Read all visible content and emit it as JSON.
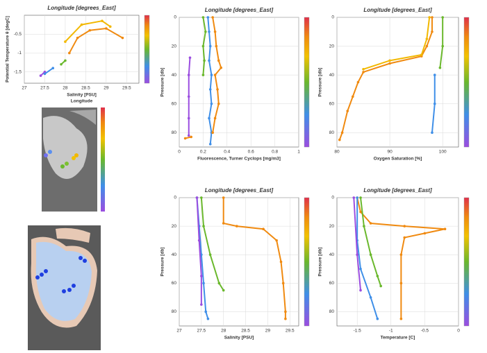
{
  "chart_data": [
    {
      "type": "line",
      "title": "Longitude [degrees_East]",
      "subtitle": "Longitude",
      "xlabel": "Salinity [PSU]",
      "ylabel": "Potential Temperature θ [degC]",
      "xlim": [
        27,
        29.8
      ],
      "xticks": [
        27,
        27.5,
        28,
        28.5,
        29,
        29.5
      ],
      "ylim": [
        -1.8,
        0
      ],
      "yticks": [
        -1.5,
        -1,
        -0.5
      ],
      "y_inverted": false,
      "grid": true,
      "series": [
        {
          "color": "#9b4de0",
          "x": [
            27.4,
            27.5
          ],
          "values": [
            -1.6,
            -1.5
          ]
        },
        {
          "color": "#3f8fe8",
          "x": [
            27.5,
            27.7
          ],
          "values": [
            -1.55,
            -1.4
          ]
        },
        {
          "color": "#6ab82c",
          "x": [
            27.9,
            28
          ],
          "values": [
            -1.3,
            -1.2
          ]
        },
        {
          "color": "#f08a10",
          "x": [
            28.1,
            28.3,
            28.6,
            29,
            29.4
          ],
          "values": [
            -1.0,
            -0.6,
            -0.4,
            -0.35,
            -0.6
          ]
        },
        {
          "color": "#f2b800",
          "x": [
            28,
            28.4,
            28.9,
            29.1
          ],
          "values": [
            -0.7,
            -0.25,
            -0.15,
            -0.3
          ]
        }
      ]
    },
    {
      "type": "line",
      "title": "Longitude [degrees_East]",
      "xlabel": "Fluorescence, Turner Cyclops [mg/m3]",
      "ylabel": "Pressure [db]",
      "xlim": [
        0,
        1
      ],
      "xticks": [
        0,
        0.2,
        0.4,
        0.6,
        0.8,
        1
      ],
      "ylim": [
        0,
        90
      ],
      "yticks": [
        0,
        20,
        40,
        60,
        80
      ],
      "y_inverted": true,
      "grid": true,
      "series": [
        {
          "color": "#9b4de0",
          "x": [
            0.09,
            0.08,
            0.08,
            0.08,
            0.08
          ],
          "values": [
            28,
            40,
            55,
            70,
            82
          ]
        },
        {
          "color": "#3f8fe8",
          "x": [
            0.24,
            0.25,
            0.26,
            0.25,
            0.27,
            0.26,
            0.27,
            0.25,
            0.27,
            0.26
          ],
          "values": [
            0,
            10,
            20,
            30,
            40,
            50,
            60,
            70,
            80,
            88
          ]
        },
        {
          "color": "#6ab82c",
          "x": [
            0.2,
            0.22,
            0.2,
            0.21,
            0.2
          ],
          "values": [
            0,
            10,
            20,
            30,
            40
          ]
        },
        {
          "color": "#f08a10",
          "x": [
            0.28,
            0.3,
            0.31,
            0.33,
            0.35,
            0.3,
            0.32,
            0.33,
            0.3,
            0.28
          ],
          "values": [
            0,
            10,
            20,
            30,
            35,
            40,
            50,
            60,
            70,
            80
          ]
        },
        {
          "color": "#f08a10",
          "x": [
            0.05,
            0.1
          ],
          "values": [
            84,
            83
          ]
        }
      ]
    },
    {
      "type": "line",
      "title": "Longitude [degrees_East]",
      "xlabel": "Oxygen Saturation [%]",
      "ylabel": "Pressure [db]",
      "xlim": [
        80,
        103
      ],
      "xticks": [
        80,
        90,
        100
      ],
      "ylim": [
        0,
        90
      ],
      "yticks": [
        0,
        20,
        40,
        60,
        80
      ],
      "y_inverted": true,
      "grid": true,
      "series": [
        {
          "color": "#f08a10",
          "x": [
            98,
            98,
            97,
            96,
            90,
            85,
            84,
            83,
            82,
            81,
            80.5
          ],
          "values": [
            0,
            10,
            20,
            27,
            32,
            38,
            45,
            55,
            65,
            80,
            85
          ]
        },
        {
          "color": "#f2b800",
          "x": [
            97.5,
            97,
            96,
            90,
            85
          ],
          "values": [
            0,
            15,
            26,
            30,
            36
          ]
        },
        {
          "color": "#6ab82c",
          "x": [
            100,
            100,
            99.5
          ],
          "values": [
            0,
            20,
            35
          ]
        },
        {
          "color": "#3f8fe8",
          "x": [
            98.5,
            98.5,
            98
          ],
          "values": [
            40,
            60,
            80
          ]
        }
      ]
    },
    {
      "type": "line",
      "title": "Longitude [degrees_East]",
      "xlabel": "Salinity [PSU]",
      "ylabel": "Pressure [db]",
      "xlim": [
        27,
        29.7
      ],
      "xticks": [
        27,
        27.5,
        28,
        28.5,
        29,
        29.5
      ],
      "ylim": [
        0,
        90
      ],
      "yticks": [
        0,
        20,
        40,
        60,
        80
      ],
      "y_inverted": true,
      "grid": true,
      "series": [
        {
          "color": "#f08a10",
          "x": [
            28,
            28,
            28.3,
            28.9,
            29.2,
            29.3,
            29.35,
            29.4,
            29.4
          ],
          "values": [
            0,
            18,
            20,
            22,
            30,
            45,
            60,
            80,
            85
          ]
        },
        {
          "color": "#3f8fe8",
          "x": [
            27.4,
            27.45,
            27.5,
            27.55,
            27.6,
            27.65
          ],
          "values": [
            0,
            20,
            40,
            60,
            80,
            85
          ]
        },
        {
          "color": "#6ab82c",
          "x": [
            27.5,
            27.55,
            27.7,
            27.9,
            28
          ],
          "values": [
            0,
            20,
            40,
            60,
            65
          ]
        },
        {
          "color": "#9b4de0",
          "x": [
            27.4,
            27.45,
            27.5,
            27.5
          ],
          "values": [
            0,
            30,
            55,
            75
          ]
        }
      ]
    },
    {
      "type": "line",
      "title": "Longitude [degrees_East]",
      "xlabel": "Temperature [C]",
      "ylabel": "Pressure [db]",
      "xlim": [
        -1.8,
        0
      ],
      "xticks": [
        -1.5,
        -1,
        -0.5,
        0
      ],
      "ylim": [
        0,
        90
      ],
      "yticks": [
        0,
        20,
        40,
        60,
        80
      ],
      "y_inverted": true,
      "grid": true,
      "series": [
        {
          "color": "#f08a10",
          "x": [
            -1.5,
            -1.45,
            -1.3,
            -0.8,
            -0.2,
            -0.5,
            -0.8,
            -0.85,
            -0.85,
            -0.85
          ],
          "values": [
            0,
            10,
            18,
            20,
            22,
            25,
            28,
            40,
            60,
            85
          ]
        },
        {
          "color": "#6ab82c",
          "x": [
            -1.45,
            -1.4,
            -1.3,
            -1.2,
            -1.15
          ],
          "values": [
            0,
            20,
            40,
            55,
            62
          ]
        },
        {
          "color": "#3f8fe8",
          "x": [
            -1.5,
            -1.5,
            -1.45,
            -1.3,
            -1.2
          ],
          "values": [
            0,
            30,
            50,
            70,
            85
          ]
        },
        {
          "color": "#9b4de0",
          "x": [
            -1.55,
            -1.5,
            -1.45
          ],
          "values": [
            0,
            40,
            65
          ]
        }
      ]
    }
  ]
}
